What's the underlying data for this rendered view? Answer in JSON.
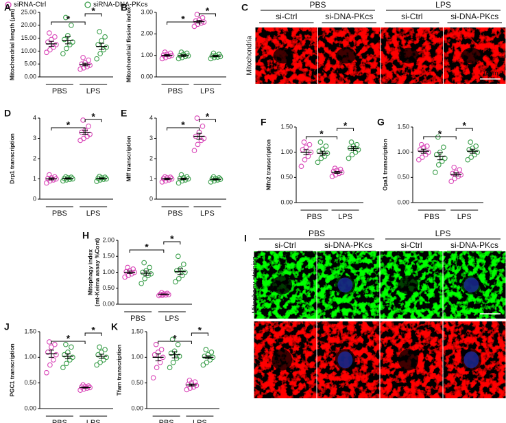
{
  "legend": [
    {
      "name": "siRNA-Ctrl",
      "color": "#d946b8"
    },
    {
      "name": "siRNA-DNA-PKcs",
      "color": "#3a9e4a"
    }
  ],
  "chart_data": [
    {
      "type": "dot",
      "panel": "A",
      "ylabel": "Mitochondrial length (μm)",
      "categories": [
        "PBS",
        "LPS"
      ],
      "ylim": [
        0,
        25
      ],
      "yticks": [
        {
          "value": 0,
          "label": "0.00"
        },
        {
          "value": 5,
          "label": "5.00"
        },
        {
          "value": 10,
          "label": "10.00"
        },
        {
          "value": 15,
          "label": "15.00"
        },
        {
          "value": 20,
          "label": "20.00"
        },
        {
          "value": 25,
          "label": "25.00"
        }
      ],
      "stars": [
        "*",
        "*"
      ],
      "series": [
        {
          "values": [
            [
              9.5,
              10.5,
              11.5,
              12.5,
              13.5,
              14.5,
              15.5,
              17
            ],
            [
              3,
              3.5,
              4,
              4.5,
              5,
              5.5,
              6.5,
              7.5
            ]
          ],
          "means": [
            12.8,
            4.8
          ],
          "errors": [
            1,
            0.5
          ]
        },
        {
          "values": [
            [
              9,
              11,
              12.5,
              13.5,
              14.5,
              16,
              20,
              23
            ],
            [
              7,
              9,
              10.5,
              11.5,
              12.5,
              14,
              15.5,
              17.5
            ]
          ],
          "means": [
            14.2,
            11.8
          ],
          "errors": [
            1.4,
            1.2
          ]
        }
      ]
    },
    {
      "type": "dot",
      "panel": "B",
      "ylabel": "Mitochondrial fission index",
      "categories": [
        "PBS",
        "LPS"
      ],
      "ylim": [
        0,
        3
      ],
      "yticks": [
        {
          "value": 0,
          "label": "0.00"
        },
        {
          "value": 1,
          "label": "1.00"
        },
        {
          "value": 2,
          "label": "2.00"
        },
        {
          "value": 3,
          "label": "3.00"
        }
      ],
      "stars": [
        "*",
        "*"
      ],
      "series": [
        {
          "values": [
            [
              0.85,
              0.9,
              0.95,
              1.0,
              1.02,
              1.05,
              1.1,
              1.15
            ],
            [
              2.35,
              2.45,
              2.5,
              2.55,
              2.6,
              2.65,
              2.75,
              2.9
            ]
          ],
          "means": [
            1.0,
            2.57
          ],
          "errors": [
            0.04,
            0.06
          ]
        },
        {
          "values": [
            [
              0.85,
              0.9,
              0.95,
              0.98,
              1.0,
              1.05,
              1.1,
              1.15
            ],
            [
              0.85,
              0.9,
              0.92,
              0.95,
              0.98,
              1.0,
              1.05,
              1.1
            ]
          ],
          "means": [
            0.99,
            0.97
          ],
          "errors": [
            0.04,
            0.03
          ]
        }
      ]
    },
    {
      "type": "dot",
      "panel": "D",
      "ylabel": "Drp1 transcription",
      "categories": [
        "PBS",
        "LPS"
      ],
      "ylim": [
        0,
        4
      ],
      "yticks": [
        0,
        1,
        2,
        3,
        4
      ],
      "stars": [
        "*",
        "*"
      ],
      "series": [
        {
          "values": [
            [
              0.8,
              0.9,
              0.95,
              1.0,
              1.02,
              1.05,
              1.1,
              1.2
            ],
            [
              2.9,
              3.0,
              3.1,
              3.2,
              3.3,
              3.4,
              3.6,
              3.9
            ]
          ],
          "means": [
            1.0,
            3.3
          ],
          "errors": [
            0.05,
            0.1
          ]
        },
        {
          "values": [
            [
              0.9,
              0.95,
              0.98,
              1.0,
              1.02,
              1.05,
              1.08,
              1.1
            ],
            [
              0.88,
              0.95,
              0.98,
              1.0,
              1.03,
              1.05,
              1.08,
              1.12
            ]
          ],
          "means": [
            1.02,
            1.02
          ],
          "errors": [
            0.03,
            0.03
          ]
        }
      ]
    },
    {
      "type": "dot",
      "panel": "E",
      "ylabel": "Mff transcription",
      "categories": [
        "PBS",
        "LPS"
      ],
      "ylim": [
        0,
        4
      ],
      "yticks": [
        0,
        1,
        2,
        3,
        4
      ],
      "stars": [
        "*",
        "*"
      ],
      "series": [
        {
          "values": [
            [
              0.85,
              0.9,
              0.95,
              1.0,
              1.02,
              1.05,
              1.08,
              1.1
            ],
            [
              2.4,
              2.7,
              2.9,
              3.0,
              3.1,
              3.3,
              3.6,
              4.0
            ]
          ],
          "means": [
            1.0,
            3.1
          ],
          "errors": [
            0.04,
            0.15
          ]
        },
        {
          "values": [
            [
              0.8,
              0.9,
              0.95,
              1.0,
              1.02,
              1.05,
              1.1,
              1.2
            ],
            [
              0.85,
              0.9,
              0.95,
              0.98,
              1.0,
              1.02,
              1.05,
              1.1
            ]
          ],
          "means": [
            1.0,
            0.98
          ],
          "errors": [
            0.04,
            0.03
          ]
        }
      ]
    },
    {
      "type": "dot",
      "panel": "F",
      "ylabel": "Mfn2 transcription",
      "categories": [
        "PBS",
        "LPS"
      ],
      "ylim": [
        0,
        1.5
      ],
      "yticks": [
        {
          "value": 0,
          "label": "0.00"
        },
        {
          "value": 0.5,
          "label": "0.50"
        },
        {
          "value": 1,
          "label": "1.00"
        },
        {
          "value": 1.5,
          "label": "1.50"
        }
      ],
      "stars": [
        "*",
        "*"
      ],
      "series": [
        {
          "values": [
            [
              0.72,
              0.85,
              0.92,
              1.0,
              1.05,
              1.1,
              1.15,
              1.2
            ],
            [
              0.52,
              0.55,
              0.58,
              0.6,
              0.62,
              0.64,
              0.66,
              0.68
            ]
          ],
          "means": [
            1.0,
            0.6
          ],
          "errors": [
            0.05,
            0.02
          ]
        },
        {
          "values": [
            [
              0.8,
              0.88,
              0.92,
              0.98,
              1.02,
              1.06,
              1.12,
              1.2
            ],
            [
              0.88,
              0.95,
              1.0,
              1.05,
              1.08,
              1.12,
              1.15,
              1.2
            ]
          ],
          "means": [
            0.98,
            1.07
          ],
          "errors": [
            0.04,
            0.04
          ]
        }
      ]
    },
    {
      "type": "dot",
      "panel": "G",
      "ylabel": "Opa1 transcription",
      "categories": [
        "PBS",
        "LPS"
      ],
      "ylim": [
        0,
        1.5
      ],
      "yticks": [
        {
          "value": 0,
          "label": "0.00"
        },
        {
          "value": 0.5,
          "label": "0.50"
        },
        {
          "value": 1,
          "label": "1.00"
        },
        {
          "value": 1.5,
          "label": "1.50"
        }
      ],
      "stars": [
        "*",
        "*"
      ],
      "series": [
        {
          "values": [
            [
              0.85,
              0.9,
              0.95,
              1.0,
              1.05,
              1.1,
              1.12,
              1.15
            ],
            [
              0.42,
              0.48,
              0.52,
              0.55,
              0.58,
              0.6,
              0.65,
              0.7
            ]
          ],
          "means": [
            1.02,
            0.56
          ],
          "errors": [
            0.04,
            0.03
          ]
        },
        {
          "values": [
            [
              0.6,
              0.75,
              0.82,
              0.88,
              0.95,
              1.0,
              1.1,
              1.3
            ],
            [
              0.85,
              0.9,
              0.95,
              1.0,
              1.05,
              1.08,
              1.12,
              1.2
            ]
          ],
          "means": [
            0.92,
            1.02
          ],
          "errors": [
            0.07,
            0.04
          ]
        }
      ]
    },
    {
      "type": "dot",
      "panel": "H",
      "ylabel": [
        "Mitophagy index",
        "(mt-Keima assay %Cont)"
      ],
      "categories": [
        "PBS",
        "LPS"
      ],
      "ylim": [
        0,
        2
      ],
      "yticks": [
        {
          "value": 0,
          "label": "0.00"
        },
        {
          "value": 0.5,
          "label": "0.50"
        },
        {
          "value": 1,
          "label": "1.00"
        },
        {
          "value": 1.5,
          "label": "1.50"
        },
        {
          "value": 2,
          "label": "2.00"
        }
      ],
      "stars": [
        "*",
        "*"
      ],
      "series": [
        {
          "values": [
            [
              0.85,
              0.9,
              0.95,
              1.0,
              1.02,
              1.05,
              1.1,
              1.15
            ],
            [
              0.27,
              0.28,
              0.29,
              0.3,
              0.31,
              0.32,
              0.34,
              0.36
            ]
          ],
          "means": [
            1.0,
            0.31
          ],
          "errors": [
            0.04,
            0.01
          ]
        },
        {
          "values": [
            [
              0.65,
              0.8,
              0.9,
              0.95,
              1.0,
              1.05,
              1.15,
              1.3
            ],
            [
              0.7,
              0.8,
              0.9,
              1.0,
              1.05,
              1.1,
              1.25,
              1.5
            ]
          ],
          "means": [
            0.97,
            1.02
          ],
          "errors": [
            0.07,
            0.09
          ]
        }
      ]
    },
    {
      "type": "dot",
      "panel": "J",
      "ylabel": "PGC1 transcription",
      "categories": [
        "PBS",
        "LPS"
      ],
      "ylim": [
        0,
        1.5
      ],
      "yticks": [
        {
          "value": 0,
          "label": "0.00"
        },
        {
          "value": 0.5,
          "label": "0.50"
        },
        {
          "value": 1,
          "label": "1.00"
        },
        {
          "value": 1.5,
          "label": "1.50"
        }
      ],
      "stars": [
        "*",
        "*"
      ],
      "series": [
        {
          "values": [
            [
              0.7,
              0.85,
              0.95,
              1.05,
              1.1,
              1.2,
              1.25,
              1.3
            ],
            [
              0.36,
              0.38,
              0.4,
              0.41,
              0.42,
              0.43,
              0.44,
              0.46
            ]
          ],
          "means": [
            1.07,
            0.41
          ],
          "errors": [
            0.07,
            0.01
          ]
        },
        {
          "values": [
            [
              0.8,
              0.88,
              0.95,
              1.0,
              1.05,
              1.1,
              1.2,
              1.25
            ],
            [
              0.85,
              0.9,
              0.95,
              1.0,
              1.05,
              1.1,
              1.15,
              1.2
            ]
          ],
          "means": [
            1.02,
            1.02
          ],
          "errors": [
            0.05,
            0.04
          ]
        }
      ]
    },
    {
      "type": "dot",
      "panel": "K",
      "ylabel": "Tfam transcription",
      "categories": [
        "PBS",
        "LPS"
      ],
      "ylim": [
        0,
        1.5
      ],
      "yticks": [
        {
          "value": 0,
          "label": "0.00"
        },
        {
          "value": 0.5,
          "label": "0.50"
        },
        {
          "value": 1,
          "label": "1.00"
        },
        {
          "value": 1.5,
          "label": "1.50"
        }
      ],
      "stars": [
        "*",
        "*"
      ],
      "series": [
        {
          "values": [
            [
              0.6,
              0.8,
              0.9,
              1.0,
              1.05,
              1.1,
              1.15,
              1.25
            ],
            [
              0.37,
              0.4,
              0.42,
              0.45,
              0.47,
              0.5,
              0.52,
              0.55
            ]
          ],
          "means": [
            1.0,
            0.46
          ],
          "errors": [
            0.07,
            0.02
          ]
        },
        {
          "values": [
            [
              0.8,
              0.9,
              0.98,
              1.02,
              1.08,
              1.12,
              1.25,
              1.35
            ],
            [
              0.85,
              0.9,
              0.95,
              1.0,
              1.02,
              1.05,
              1.1,
              1.15
            ]
          ],
          "means": [
            1.05,
            1.0
          ],
          "errors": [
            0.06,
            0.03
          ]
        }
      ]
    }
  ],
  "images": [
    {
      "panel": "C",
      "groups": [
        "PBS",
        "LPS"
      ],
      "columns": [
        "si-Ctrl",
        "si-DNA-PKcs",
        "si-Ctrl",
        "si-DNA-PKcs"
      ],
      "label": "Mitochondria",
      "scale": "10μm"
    },
    {
      "panel": "I",
      "groups": [
        "PBS",
        "LPS"
      ],
      "columns": [
        "si-Ctrl",
        "si-DNA-PKcs",
        "si-Ctrl",
        "si-DNA-PKcs"
      ],
      "label": "Mitophagy staining",
      "scale": "25 μm"
    }
  ]
}
